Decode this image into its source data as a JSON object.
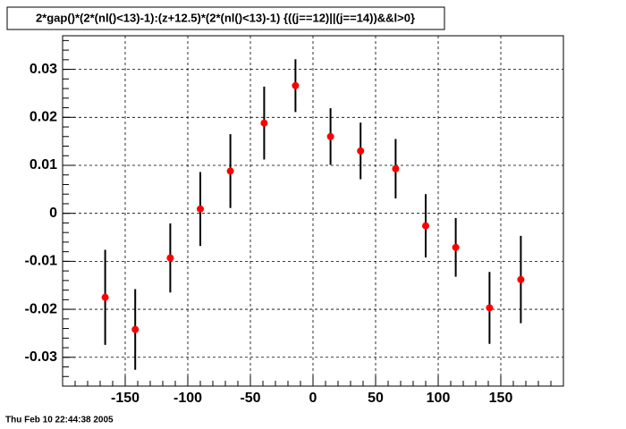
{
  "chart_data": {
    "type": "errorbar",
    "title": "2*gap()*(2*(nl()<13)-1):(z+12.5)*(2*(nl()<13)-1) {((j==12)||(j==14))&&l>0}",
    "timestamp": "Thu Feb 10 22:44:38 2005",
    "x": [
      -166,
      -142,
      -114,
      -90,
      -66,
      -39,
      -14,
      14,
      38,
      66,
      90,
      114,
      141,
      166
    ],
    "values": [
      -0.0175,
      -0.0242,
      -0.0093,
      0.0009,
      0.0088,
      0.0188,
      0.0266,
      0.016,
      0.013,
      0.0093,
      -0.0026,
      -0.0071,
      -0.0197,
      -0.0138
    ],
    "errors": [
      0.0099,
      0.0084,
      0.0072,
      0.0077,
      0.0077,
      0.0076,
      0.0055,
      0.0059,
      0.0059,
      0.0062,
      0.0066,
      0.0061,
      0.0075,
      0.0091
    ],
    "color": "#ff0000",
    "xlim": [
      -200,
      200
    ],
    "xticks": [
      -150,
      -100,
      -50,
      0,
      50,
      100,
      150
    ],
    "ylim": [
      -0.036,
      0.037
    ],
    "yticks": [
      -0.03,
      -0.02,
      -0.01,
      0,
      0.01,
      0.02,
      0.03
    ],
    "grid": true
  }
}
